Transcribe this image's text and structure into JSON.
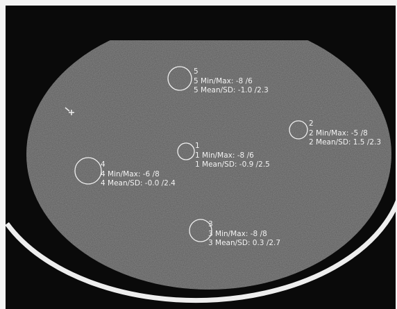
{
  "rois": [
    {
      "label": "5",
      "minmax": "5 Min/Max: -8 /6",
      "meansd": "5 Mean/SD: -1.0 /2.3"
    },
    {
      "label": "2",
      "minmax": "2 Min/Max: -5 /8",
      "meansd": "2 Mean/SD: 1.5 /2.3"
    },
    {
      "label": "1",
      "minmax": "1 Min/Max: -8 /6",
      "meansd": "1 Mean/SD: -0.9 /2.5"
    },
    {
      "label": "4",
      "minmax": "4 Min/Max: -6 /8",
      "meansd": "4 Mean/SD: -0.0 /2.4"
    },
    {
      "label": "3",
      "minmax": "3 Min/Max: -8 /8",
      "meansd": "3 Mean/SD: 0.3 /2.7"
    }
  ]
}
